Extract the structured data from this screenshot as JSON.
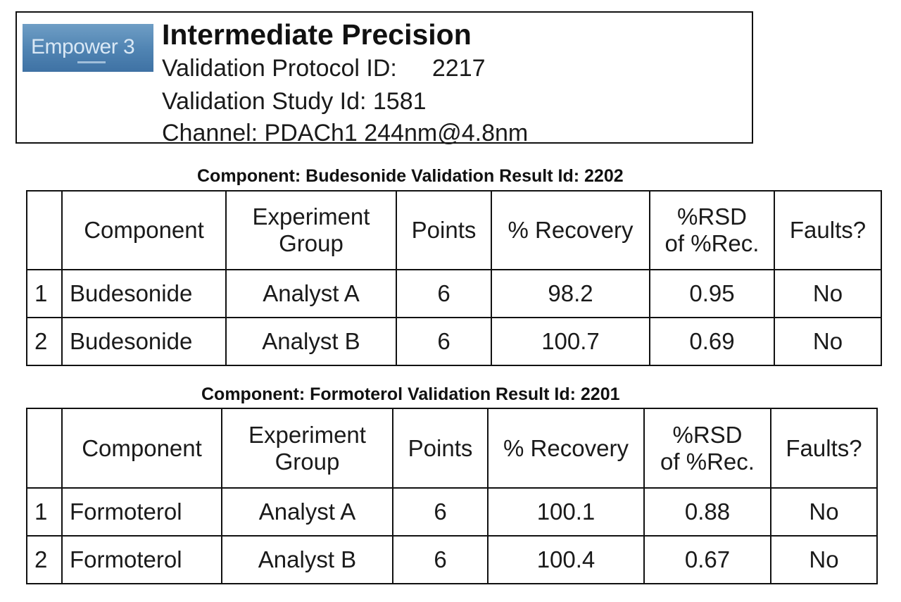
{
  "header": {
    "logo_text": "Empower 3",
    "logo_icon": "empower-3-logo",
    "title": "Intermediate Precision",
    "protocol_label": "Validation Protocol ID:",
    "protocol_value": "2217",
    "study": "Validation Study Id: 1581",
    "channel": "Channel: PDACh1 244nm@4.8nm"
  },
  "columns": {
    "component": "Component",
    "experiment_group_1": "Experiment",
    "experiment_group_2": "Group",
    "points": "Points",
    "recovery": "% Recovery",
    "rsd_1": "%RSD",
    "rsd_2": "of %Rec.",
    "faults": "Faults?"
  },
  "sections": [
    {
      "caption": "Component: Budesonide Validation Result Id: 2202",
      "rows": [
        {
          "index": "1",
          "component": "Budesonide",
          "group": "Analyst A",
          "points": "6",
          "recovery": "98.2",
          "rsd": "0.95",
          "faults": "No"
        },
        {
          "index": "2",
          "component": "Budesonide",
          "group": "Analyst B",
          "points": "6",
          "recovery": "100.7",
          "rsd": "0.69",
          "faults": "No"
        }
      ]
    },
    {
      "caption": "Component: Formoterol Validation Result Id: 2201",
      "rows": [
        {
          "index": "1",
          "component": "Formoterol",
          "group": "Analyst A",
          "points": "6",
          "recovery": "100.1",
          "rsd": "0.88",
          "faults": "No"
        },
        {
          "index": "2",
          "component": "Formoterol",
          "group": "Analyst B",
          "points": "6",
          "recovery": "100.4",
          "rsd": "0.67",
          "faults": "No"
        }
      ]
    }
  ]
}
